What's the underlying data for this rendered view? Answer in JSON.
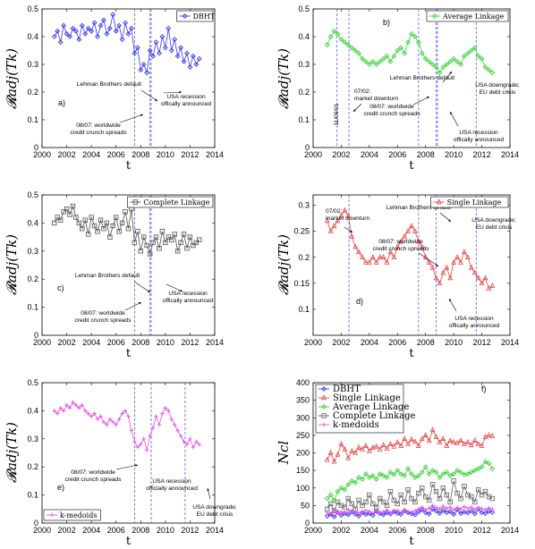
{
  "chart_data": [
    {
      "id": "a",
      "type": "line",
      "panel_label": "a)",
      "ylabel": "𝓡adj(Tk)",
      "xlabel": "t",
      "xlim": [
        2000,
        2014
      ],
      "ylim": [
        0,
        0.5
      ],
      "xticks": [
        "2000",
        "2002",
        "2004",
        "2006",
        "2008",
        "2010",
        "2012",
        "2014"
      ],
      "yticks": [
        "0",
        "0.1",
        "0.2",
        "0.3",
        "0.4",
        "0.5"
      ],
      "legend": "DBHT",
      "legend_position": "top-right",
      "color": "#3a3af0",
      "marker": "diamond",
      "vlines": [
        2007.5,
        2008.75,
        2008.85
      ],
      "annotations": [
        {
          "text": [
            "Lehman Brothers default"
          ]
        },
        {
          "text": [
            "USA recession",
            "offically announced"
          ]
        },
        {
          "text": [
            "08/07: worldwide",
            "credit crunch spreads"
          ]
        }
      ],
      "x": [
        2001.0,
        2001.25,
        2001.5,
        2001.75,
        2002.0,
        2002.25,
        2002.5,
        2002.75,
        2003.0,
        2003.25,
        2003.5,
        2003.75,
        2004.0,
        2004.25,
        2004.5,
        2004.75,
        2005.0,
        2005.25,
        2005.5,
        2005.75,
        2006.0,
        2006.25,
        2006.5,
        2006.75,
        2007.0,
        2007.25,
        2007.5,
        2007.75,
        2008.0,
        2008.25,
        2008.5,
        2008.75,
        2009.0,
        2009.25,
        2009.5,
        2009.75,
        2010.0,
        2010.25,
        2010.5,
        2010.75,
        2011.0,
        2011.25,
        2011.5,
        2011.75,
        2012.0,
        2012.25,
        2012.5,
        2012.75
      ],
      "values": [
        0.4,
        0.42,
        0.38,
        0.44,
        0.41,
        0.4,
        0.43,
        0.42,
        0.39,
        0.44,
        0.41,
        0.43,
        0.42,
        0.45,
        0.4,
        0.44,
        0.46,
        0.41,
        0.43,
        0.48,
        0.42,
        0.44,
        0.39,
        0.45,
        0.41,
        0.43,
        0.34,
        0.36,
        0.28,
        0.3,
        0.27,
        0.35,
        0.33,
        0.38,
        0.34,
        0.4,
        0.36,
        0.43,
        0.35,
        0.39,
        0.33,
        0.36,
        0.31,
        0.34,
        0.29,
        0.33,
        0.3,
        0.32
      ]
    },
    {
      "id": "b",
      "type": "line",
      "panel_label": "b)",
      "ylabel": "𝓡adj(Tk)",
      "xlabel": "t",
      "xlim": [
        2000,
        2014
      ],
      "ylim": [
        0,
        0.5
      ],
      "xticks": [
        "2000",
        "2002",
        "2004",
        "2006",
        "2008",
        "2010",
        "2012",
        "2014"
      ],
      "yticks": [
        "0",
        "0.1",
        "0.2",
        "0.3",
        "0.4",
        "0.5"
      ],
      "legend": "Average Linkage",
      "legend_position": "top-right",
      "color": "#3cd23c",
      "marker": "diamond",
      "vlines": [
        2001.7,
        2002.55,
        2007.5,
        2008.75,
        2008.85,
        2011.6
      ],
      "annotations": [
        {
          "text": [
            "11/09/01"
          ]
        },
        {
          "text": [
            "07/02:",
            "market downturn"
          ]
        },
        {
          "text": [
            "Lehman Brothers default"
          ]
        },
        {
          "text": [
            "08/07: worldwide",
            "credit crunch spreads"
          ]
        },
        {
          "text": [
            "USA downgrade;",
            "EU debt crisis"
          ]
        },
        {
          "text": [
            "USA recession",
            "offically announced"
          ]
        }
      ],
      "x": [
        2001.0,
        2001.25,
        2001.5,
        2001.75,
        2002.0,
        2002.25,
        2002.5,
        2002.75,
        2003.0,
        2003.25,
        2003.5,
        2003.75,
        2004.0,
        2004.25,
        2004.5,
        2004.75,
        2005.0,
        2005.25,
        2005.5,
        2005.75,
        2006.0,
        2006.25,
        2006.5,
        2006.75,
        2007.0,
        2007.25,
        2007.5,
        2007.75,
        2008.0,
        2008.25,
        2008.5,
        2008.75,
        2009.0,
        2009.25,
        2009.5,
        2009.75,
        2010.0,
        2010.25,
        2010.5,
        2010.75,
        2011.0,
        2011.25,
        2011.5,
        2011.75,
        2012.0,
        2012.25,
        2012.5,
        2012.75
      ],
      "values": [
        0.37,
        0.4,
        0.42,
        0.41,
        0.39,
        0.38,
        0.37,
        0.36,
        0.35,
        0.34,
        0.32,
        0.31,
        0.3,
        0.31,
        0.3,
        0.31,
        0.32,
        0.33,
        0.31,
        0.33,
        0.35,
        0.36,
        0.34,
        0.38,
        0.41,
        0.4,
        0.38,
        0.34,
        0.32,
        0.31,
        0.3,
        0.29,
        0.27,
        0.29,
        0.3,
        0.31,
        0.32,
        0.31,
        0.3,
        0.33,
        0.34,
        0.35,
        0.36,
        0.33,
        0.32,
        0.29,
        0.28,
        0.27
      ]
    },
    {
      "id": "c",
      "type": "line",
      "panel_label": "c)",
      "ylabel": "𝓡adj(Tk)",
      "xlabel": "t",
      "xlim": [
        2000,
        2014
      ],
      "ylim": [
        0,
        0.5
      ],
      "xticks": [
        "2000",
        "2002",
        "2004",
        "2006",
        "2008",
        "2010",
        "2012",
        "2014"
      ],
      "yticks": [
        "0",
        "0.1",
        "0.2",
        "0.3",
        "0.4",
        "0.5"
      ],
      "legend": "Complete Linkage",
      "legend_position": "top-right",
      "color": "#505050",
      "marker": "square",
      "vlines": [
        2007.5,
        2008.75,
        2008.85
      ],
      "annotations": [
        {
          "text": [
            "Lehman Brothers default"
          ]
        },
        {
          "text": [
            "USA recession",
            "offically announced"
          ]
        },
        {
          "text": [
            "08/07: worldwide",
            "credit crunch spreads"
          ]
        }
      ],
      "x": [
        2001.0,
        2001.25,
        2001.5,
        2001.75,
        2002.0,
        2002.25,
        2002.5,
        2002.75,
        2003.0,
        2003.25,
        2003.5,
        2003.75,
        2004.0,
        2004.25,
        2004.5,
        2004.75,
        2005.0,
        2005.25,
        2005.5,
        2005.75,
        2006.0,
        2006.25,
        2006.5,
        2006.75,
        2007.0,
        2007.25,
        2007.5,
        2007.75,
        2008.0,
        2008.25,
        2008.5,
        2008.75,
        2009.0,
        2009.25,
        2009.5,
        2009.75,
        2010.0,
        2010.25,
        2010.5,
        2010.75,
        2011.0,
        2011.25,
        2011.5,
        2011.75,
        2012.0,
        2012.25,
        2012.5,
        2012.75
      ],
      "values": [
        0.4,
        0.42,
        0.41,
        0.44,
        0.45,
        0.43,
        0.46,
        0.42,
        0.4,
        0.38,
        0.41,
        0.36,
        0.42,
        0.39,
        0.37,
        0.41,
        0.38,
        0.4,
        0.35,
        0.39,
        0.42,
        0.37,
        0.4,
        0.44,
        0.38,
        0.45,
        0.33,
        0.37,
        0.3,
        0.35,
        0.32,
        0.29,
        0.33,
        0.35,
        0.31,
        0.37,
        0.33,
        0.35,
        0.34,
        0.36,
        0.3,
        0.33,
        0.36,
        0.31,
        0.35,
        0.32,
        0.33,
        0.34
      ]
    },
    {
      "id": "d",
      "type": "line",
      "panel_label": "d)",
      "ylabel": "𝓡adj(Tk)",
      "xlabel": "t",
      "xlim": [
        2000,
        2014
      ],
      "ylim": [
        0.05,
        0.32
      ],
      "xticks": [
        "2000",
        "2002",
        "2004",
        "2006",
        "2008",
        "2010",
        "2012",
        "2014"
      ],
      "yticks": [
        "0.1",
        "0.15",
        "0.2",
        "0.25",
        "0.3"
      ],
      "legend": "Single Linkage",
      "legend_position": "top-right",
      "color": "#e84848",
      "marker": "triangle",
      "vlines": [
        2002.55,
        2007.5,
        2008.75,
        2011.6
      ],
      "annotations": [
        {
          "text": [
            "07/02:",
            "market downturn"
          ]
        },
        {
          "text": [
            "Lehman Brothers default"
          ]
        },
        {
          "text": [
            "08/07: worldwide",
            "credit crunch spreads"
          ]
        },
        {
          "text": [
            "USA downgrade;",
            "EU debt crisis"
          ]
        },
        {
          "text": [
            "USA recession",
            "offically announced"
          ]
        }
      ],
      "x": [
        2001.0,
        2001.25,
        2001.5,
        2001.75,
        2002.0,
        2002.25,
        2002.5,
        2002.75,
        2003.0,
        2003.25,
        2003.5,
        2003.75,
        2004.0,
        2004.25,
        2004.5,
        2004.75,
        2005.0,
        2005.25,
        2005.5,
        2005.75,
        2006.0,
        2006.25,
        2006.5,
        2006.75,
        2007.0,
        2007.25,
        2007.5,
        2007.75,
        2008.0,
        2008.25,
        2008.5,
        2008.75,
        2009.0,
        2009.25,
        2009.5,
        2009.75,
        2010.0,
        2010.25,
        2010.5,
        2010.75,
        2011.0,
        2011.25,
        2011.5,
        2011.75,
        2012.0,
        2012.25,
        2012.5,
        2012.75
      ],
      "values": [
        0.27,
        0.25,
        0.26,
        0.27,
        0.28,
        0.29,
        0.28,
        0.24,
        0.22,
        0.21,
        0.2,
        0.19,
        0.19,
        0.2,
        0.19,
        0.2,
        0.2,
        0.19,
        0.21,
        0.2,
        0.22,
        0.23,
        0.24,
        0.25,
        0.26,
        0.25,
        0.23,
        0.22,
        0.2,
        0.19,
        0.18,
        0.16,
        0.15,
        0.17,
        0.18,
        0.16,
        0.19,
        0.2,
        0.19,
        0.21,
        0.2,
        0.18,
        0.17,
        0.16,
        0.15,
        0.16,
        0.14,
        0.145
      ]
    },
    {
      "id": "e",
      "type": "line",
      "panel_label": "e)",
      "ylabel": "𝓡adj(Tk)",
      "xlabel": "t",
      "xlim": [
        2000,
        2014
      ],
      "ylim": [
        0,
        0.5
      ],
      "xticks": [
        "2000",
        "2002",
        "2004",
        "2006",
        "2008",
        "2010",
        "2012",
        "2014"
      ],
      "yticks": [
        "0",
        "0.1",
        "0.2",
        "0.3",
        "0.4",
        "0.5"
      ],
      "legend": "k-medoids",
      "legend_position": "bottom-left",
      "color": "#e850e8",
      "marker": "plus",
      "vlines": [
        2007.5,
        2008.85,
        2011.6
      ],
      "annotations": [
        {
          "text": [
            "08/07: worldwide",
            "credit crunch spreads"
          ]
        },
        {
          "text": [
            "USA recession",
            "officially announced"
          ]
        },
        {
          "text": [
            "USA downgrade;",
            "EU debt crisis"
          ]
        }
      ],
      "x": [
        2001.0,
        2001.25,
        2001.5,
        2001.75,
        2002.0,
        2002.25,
        2002.5,
        2002.75,
        2003.0,
        2003.25,
        2003.5,
        2003.75,
        2004.0,
        2004.25,
        2004.5,
        2004.75,
        2005.0,
        2005.25,
        2005.5,
        2005.75,
        2006.0,
        2006.25,
        2006.5,
        2006.75,
        2007.0,
        2007.25,
        2007.5,
        2007.75,
        2008.0,
        2008.25,
        2008.5,
        2008.75,
        2009.0,
        2009.25,
        2009.5,
        2009.75,
        2010.0,
        2010.25,
        2010.5,
        2010.75,
        2011.0,
        2011.25,
        2011.5,
        2011.75,
        2012.0,
        2012.25,
        2012.5,
        2012.75
      ],
      "values": [
        0.4,
        0.39,
        0.41,
        0.4,
        0.42,
        0.41,
        0.43,
        0.42,
        0.41,
        0.42,
        0.4,
        0.39,
        0.38,
        0.39,
        0.37,
        0.38,
        0.36,
        0.35,
        0.37,
        0.36,
        0.35,
        0.37,
        0.39,
        0.4,
        0.38,
        0.33,
        0.29,
        0.27,
        0.28,
        0.3,
        0.26,
        0.31,
        0.34,
        0.38,
        0.35,
        0.39,
        0.41,
        0.4,
        0.37,
        0.35,
        0.33,
        0.31,
        0.29,
        0.28,
        0.3,
        0.27,
        0.29,
        0.28
      ]
    },
    {
      "id": "f",
      "type": "line",
      "panel_label": "f)",
      "ylabel": "Ncl",
      "xlabel": "t",
      "xlim": [
        2000,
        2014
      ],
      "ylim": [
        0,
        400
      ],
      "xticks": [
        "2000",
        "2002",
        "2004",
        "2006",
        "2008",
        "2010",
        "2012",
        "2014"
      ],
      "yticks": [
        "0",
        "50",
        "100",
        "150",
        "200",
        "250",
        "300",
        "350",
        "400"
      ],
      "legend_position": "top-left",
      "x": [
        2001.0,
        2001.25,
        2001.5,
        2001.75,
        2002.0,
        2002.25,
        2002.5,
        2002.75,
        2003.0,
        2003.25,
        2003.5,
        2003.75,
        2004.0,
        2004.25,
        2004.5,
        2004.75,
        2005.0,
        2005.25,
        2005.5,
        2005.75,
        2006.0,
        2006.25,
        2006.5,
        2006.75,
        2007.0,
        2007.25,
        2007.5,
        2007.75,
        2008.0,
        2008.25,
        2008.5,
        2008.75,
        2009.0,
        2009.25,
        2009.5,
        2009.75,
        2010.0,
        2010.25,
        2010.5,
        2010.75,
        2011.0,
        2011.25,
        2011.5,
        2011.75,
        2012.0,
        2012.25,
        2012.5,
        2012.75
      ],
      "series": [
        {
          "name": "DBHT",
          "color": "#3a3af0",
          "marker": "diamond",
          "values": [
            20,
            25,
            18,
            30,
            22,
            28,
            24,
            32,
            26,
            20,
            30,
            25,
            28,
            22,
            34,
            27,
            24,
            30,
            26,
            33,
            28,
            25,
            35,
            30,
            27,
            24,
            32,
            38,
            30,
            26,
            40,
            35,
            28,
            36,
            30,
            33,
            25,
            38,
            28,
            32,
            29,
            35,
            27,
            40,
            30,
            28,
            34,
            31
          ]
        },
        {
          "name": "Single Linkage",
          "color": "#e84848",
          "marker": "triangle",
          "values": [
            180,
            200,
            175,
            195,
            225,
            210,
            185,
            205,
            200,
            215,
            210,
            220,
            205,
            215,
            218,
            210,
            222,
            212,
            225,
            218,
            230,
            220,
            240,
            225,
            238,
            232,
            220,
            240,
            250,
            235,
            265,
            245,
            230,
            240,
            220,
            235,
            230,
            228,
            235,
            225,
            230,
            222,
            235,
            225,
            220,
            245,
            250,
            248
          ]
        },
        {
          "name": "Average Linkage",
          "color": "#3cd23c",
          "marker": "diamond",
          "values": [
            70,
            80,
            65,
            90,
            100,
            95,
            110,
            120,
            115,
            130,
            125,
            140,
            130,
            135,
            125,
            140,
            135,
            130,
            145,
            138,
            150,
            140,
            135,
            155,
            140,
            130,
            135,
            145,
            160,
            140,
            150,
            145,
            130,
            140,
            145,
            135,
            140,
            150,
            145,
            138,
            140,
            145,
            150,
            155,
            160,
            175,
            170,
            155
          ]
        },
        {
          "name": "Complete Linkage",
          "color": "#606060",
          "marker": "square",
          "values": [
            40,
            55,
            35,
            60,
            50,
            45,
            70,
            55,
            40,
            65,
            50,
            60,
            80,
            55,
            45,
            70,
            60,
            50,
            90,
            65,
            55,
            80,
            60,
            95,
            70,
            60,
            85,
            100,
            75,
            65,
            110,
            90,
            70,
            100,
            80,
            60,
            120,
            85,
            70,
            105,
            80,
            75,
            60,
            95,
            80,
            90,
            75,
            70
          ]
        },
        {
          "name": "k-medoids",
          "color": "#e850e8",
          "marker": "plus",
          "values": [
            30,
            25,
            35,
            28,
            32,
            27,
            38,
            30,
            34,
            29,
            31,
            36,
            33,
            28,
            35,
            30,
            32,
            37,
            29,
            34,
            36,
            30,
            38,
            33,
            31,
            35,
            40,
            45,
            38,
            42,
            50,
            44,
            40,
            48,
            42,
            46,
            38,
            44,
            40,
            47,
            42,
            45,
            39,
            44,
            41,
            38,
            43,
            40
          ]
        }
      ]
    }
  ]
}
